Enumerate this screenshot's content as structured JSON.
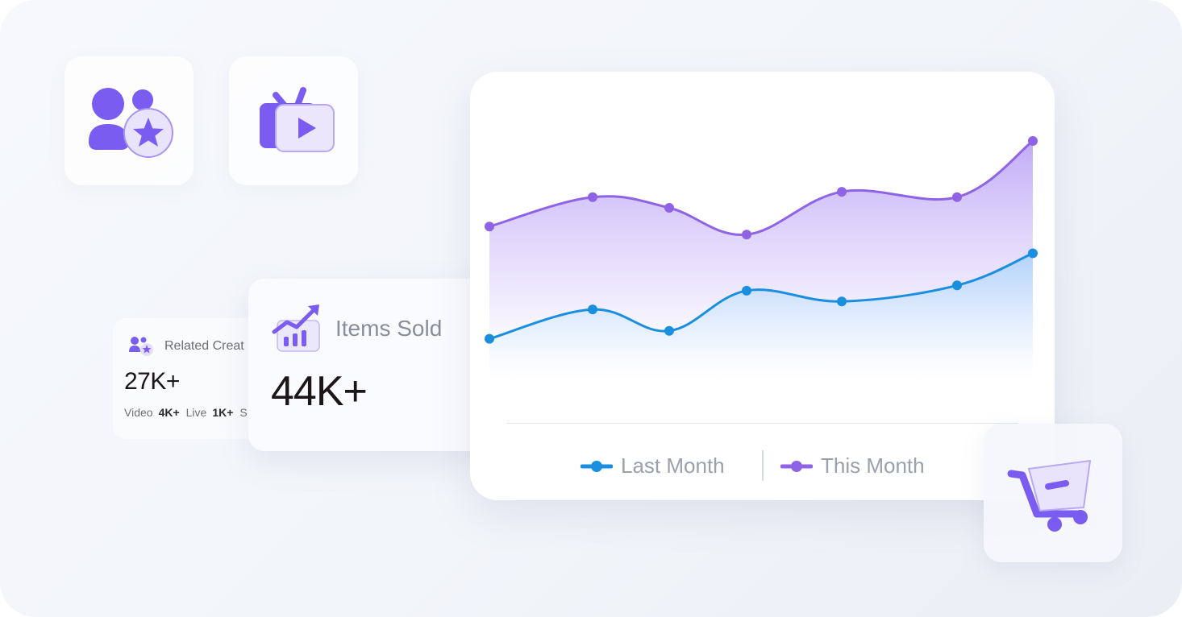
{
  "tiles": {
    "creators_icon": "creators-star-icon",
    "live_icon": "live-tv-play-icon",
    "cart_icon": "shopping-cart-icon"
  },
  "related_creators": {
    "label": "Related Creat",
    "value": "27K+",
    "stats": [
      {
        "label": "Video",
        "value": "4K+"
      },
      {
        "label": "Live",
        "value": "1K+"
      },
      {
        "label": "S",
        "value": ""
      }
    ]
  },
  "items_sold": {
    "label": "Items Sold",
    "value": "44K+",
    "icon": "trending-chart-icon"
  },
  "colors": {
    "accent_purple": "#7b5cf0",
    "series_this": "#8f63e6",
    "series_last": "#1a8fe0"
  },
  "chart_data": {
    "type": "area",
    "x": [
      1,
      2,
      3,
      4,
      5,
      6,
      7
    ],
    "ylim": [
      0,
      100
    ],
    "series": [
      {
        "name": "This Month",
        "values": [
          68,
          79,
          75,
          65,
          81,
          79,
          100
        ]
      },
      {
        "name": "Last Month",
        "values": [
          26,
          37,
          29,
          44,
          40,
          46,
          58
        ]
      }
    ],
    "grid": false,
    "legend": "bottom"
  }
}
